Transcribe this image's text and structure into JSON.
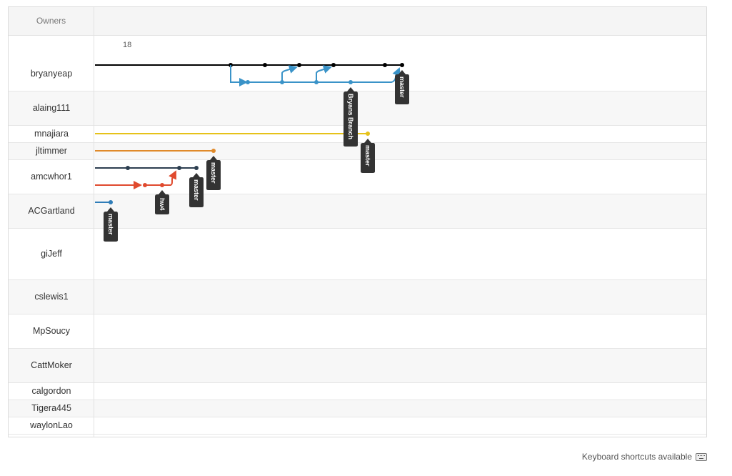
{
  "header": {
    "owners_label": "Owners",
    "tick_label": "18"
  },
  "owners": [
    "bryanyeap",
    "alaing111",
    "mnajiara",
    "jltimmer",
    "amcwhor1",
    "ACGartland",
    "giJeff",
    "cslewis1",
    "MpSoucy",
    "CattMoker",
    "calgordon",
    "Tigera445",
    "waylonLao"
  ],
  "branch_labels": {
    "bryanyeap_master": "master",
    "bryanyeap_branch": "Bryans Branch",
    "mnajiara_master": "master",
    "jltimmer_master": "master",
    "amcwhor1_master": "master",
    "amcwhor1_branch": "hw4",
    "acgartland_master": "master"
  },
  "colors": {
    "bryanyeap_main": "#000000",
    "bryanyeap_branch": "#3a93c8",
    "mnajiara": "#e6c21a",
    "jltimmer": "#e08a2a",
    "amcwhor1_main": "#2c3e50",
    "amcwhor1_branch": "#e04a2e",
    "acgartland": "#2f7db8",
    "tag_bg": "#333333"
  },
  "footer": {
    "shortcuts_text": "Keyboard shortcuts available",
    "icon": "keyboard-icon"
  }
}
